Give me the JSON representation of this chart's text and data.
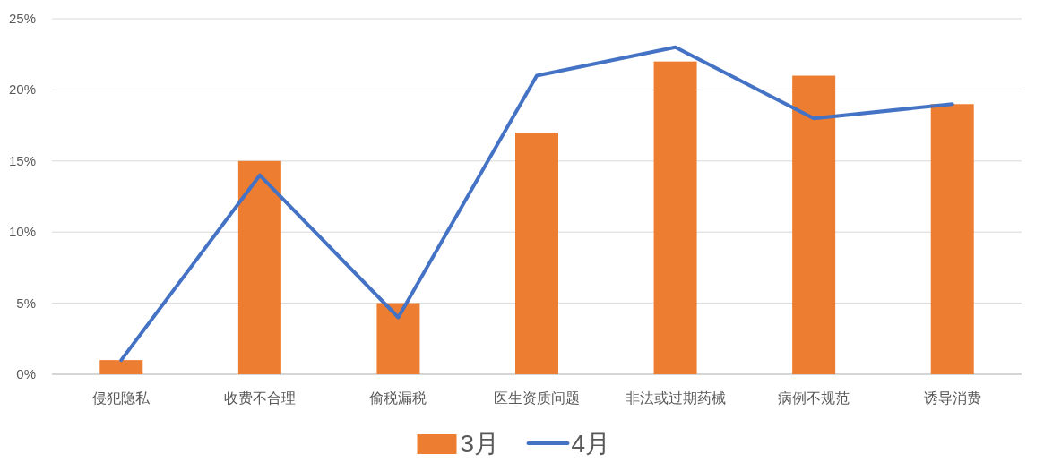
{
  "chart_data": {
    "type": "bar",
    "categories": [
      "侵犯隐私",
      "收费不合理",
      "偷税漏税",
      "医生资质问题",
      "非法或过期药械",
      "病例不规范",
      "诱导消费"
    ],
    "series": [
      {
        "name": "3月",
        "color": "#ed7d31",
        "values": [
          1,
          15,
          5,
          17,
          22,
          21,
          19
        ]
      },
      {
        "name": "4月",
        "type": "line",
        "color": "#4472c4",
        "values": [
          1,
          14,
          4,
          21,
          23,
          18,
          19
        ]
      }
    ],
    "ylim": [
      0,
      25
    ],
    "yticks": [
      {
        "value": 0,
        "label": "0%"
      },
      {
        "value": 5,
        "label": "5%"
      },
      {
        "value": 10,
        "label": "10%"
      },
      {
        "value": 15,
        "label": "15%"
      },
      {
        "value": 20,
        "label": "20%"
      },
      {
        "value": 25,
        "label": "25%"
      }
    ],
    "grid": "y",
    "legend": "bottom"
  }
}
